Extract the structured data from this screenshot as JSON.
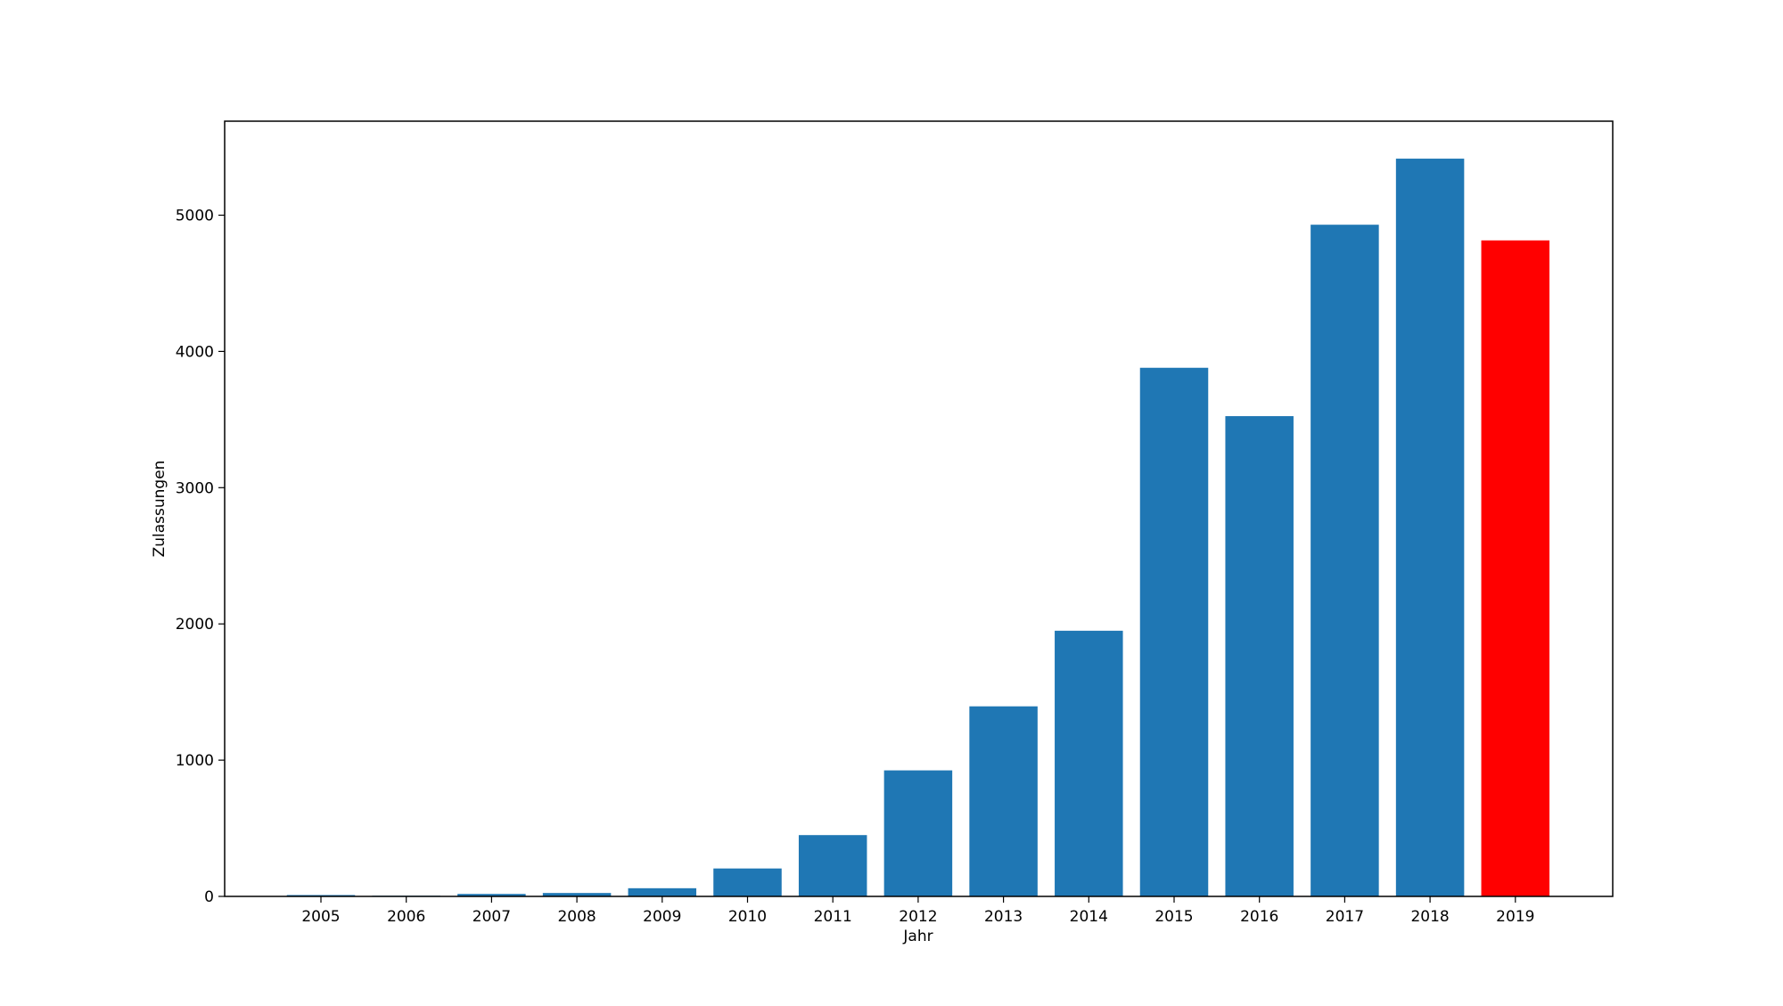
{
  "chart_data": {
    "type": "bar",
    "title": "",
    "xlabel": "Jahr",
    "ylabel": "Zulassungen",
    "categories": [
      "2005",
      "2006",
      "2007",
      "2008",
      "2009",
      "2010",
      "2011",
      "2012",
      "2013",
      "2014",
      "2015",
      "2016",
      "2017",
      "2018",
      "2019"
    ],
    "values": [
      10,
      5,
      18,
      25,
      60,
      205,
      450,
      925,
      1395,
      1950,
      3880,
      3525,
      4930,
      5415,
      4815
    ],
    "colors": [
      "#1f77b4",
      "#1f77b4",
      "#1f77b4",
      "#1f77b4",
      "#1f77b4",
      "#1f77b4",
      "#1f77b4",
      "#1f77b4",
      "#1f77b4",
      "#1f77b4",
      "#1f77b4",
      "#1f77b4",
      "#1f77b4",
      "#1f77b4",
      "#ff0000"
    ],
    "ylim": [
      0,
      5690
    ],
    "yticks": [
      "0",
      "1000",
      "2000",
      "3000",
      "4000",
      "5000"
    ],
    "grid": false,
    "legend": "none"
  }
}
